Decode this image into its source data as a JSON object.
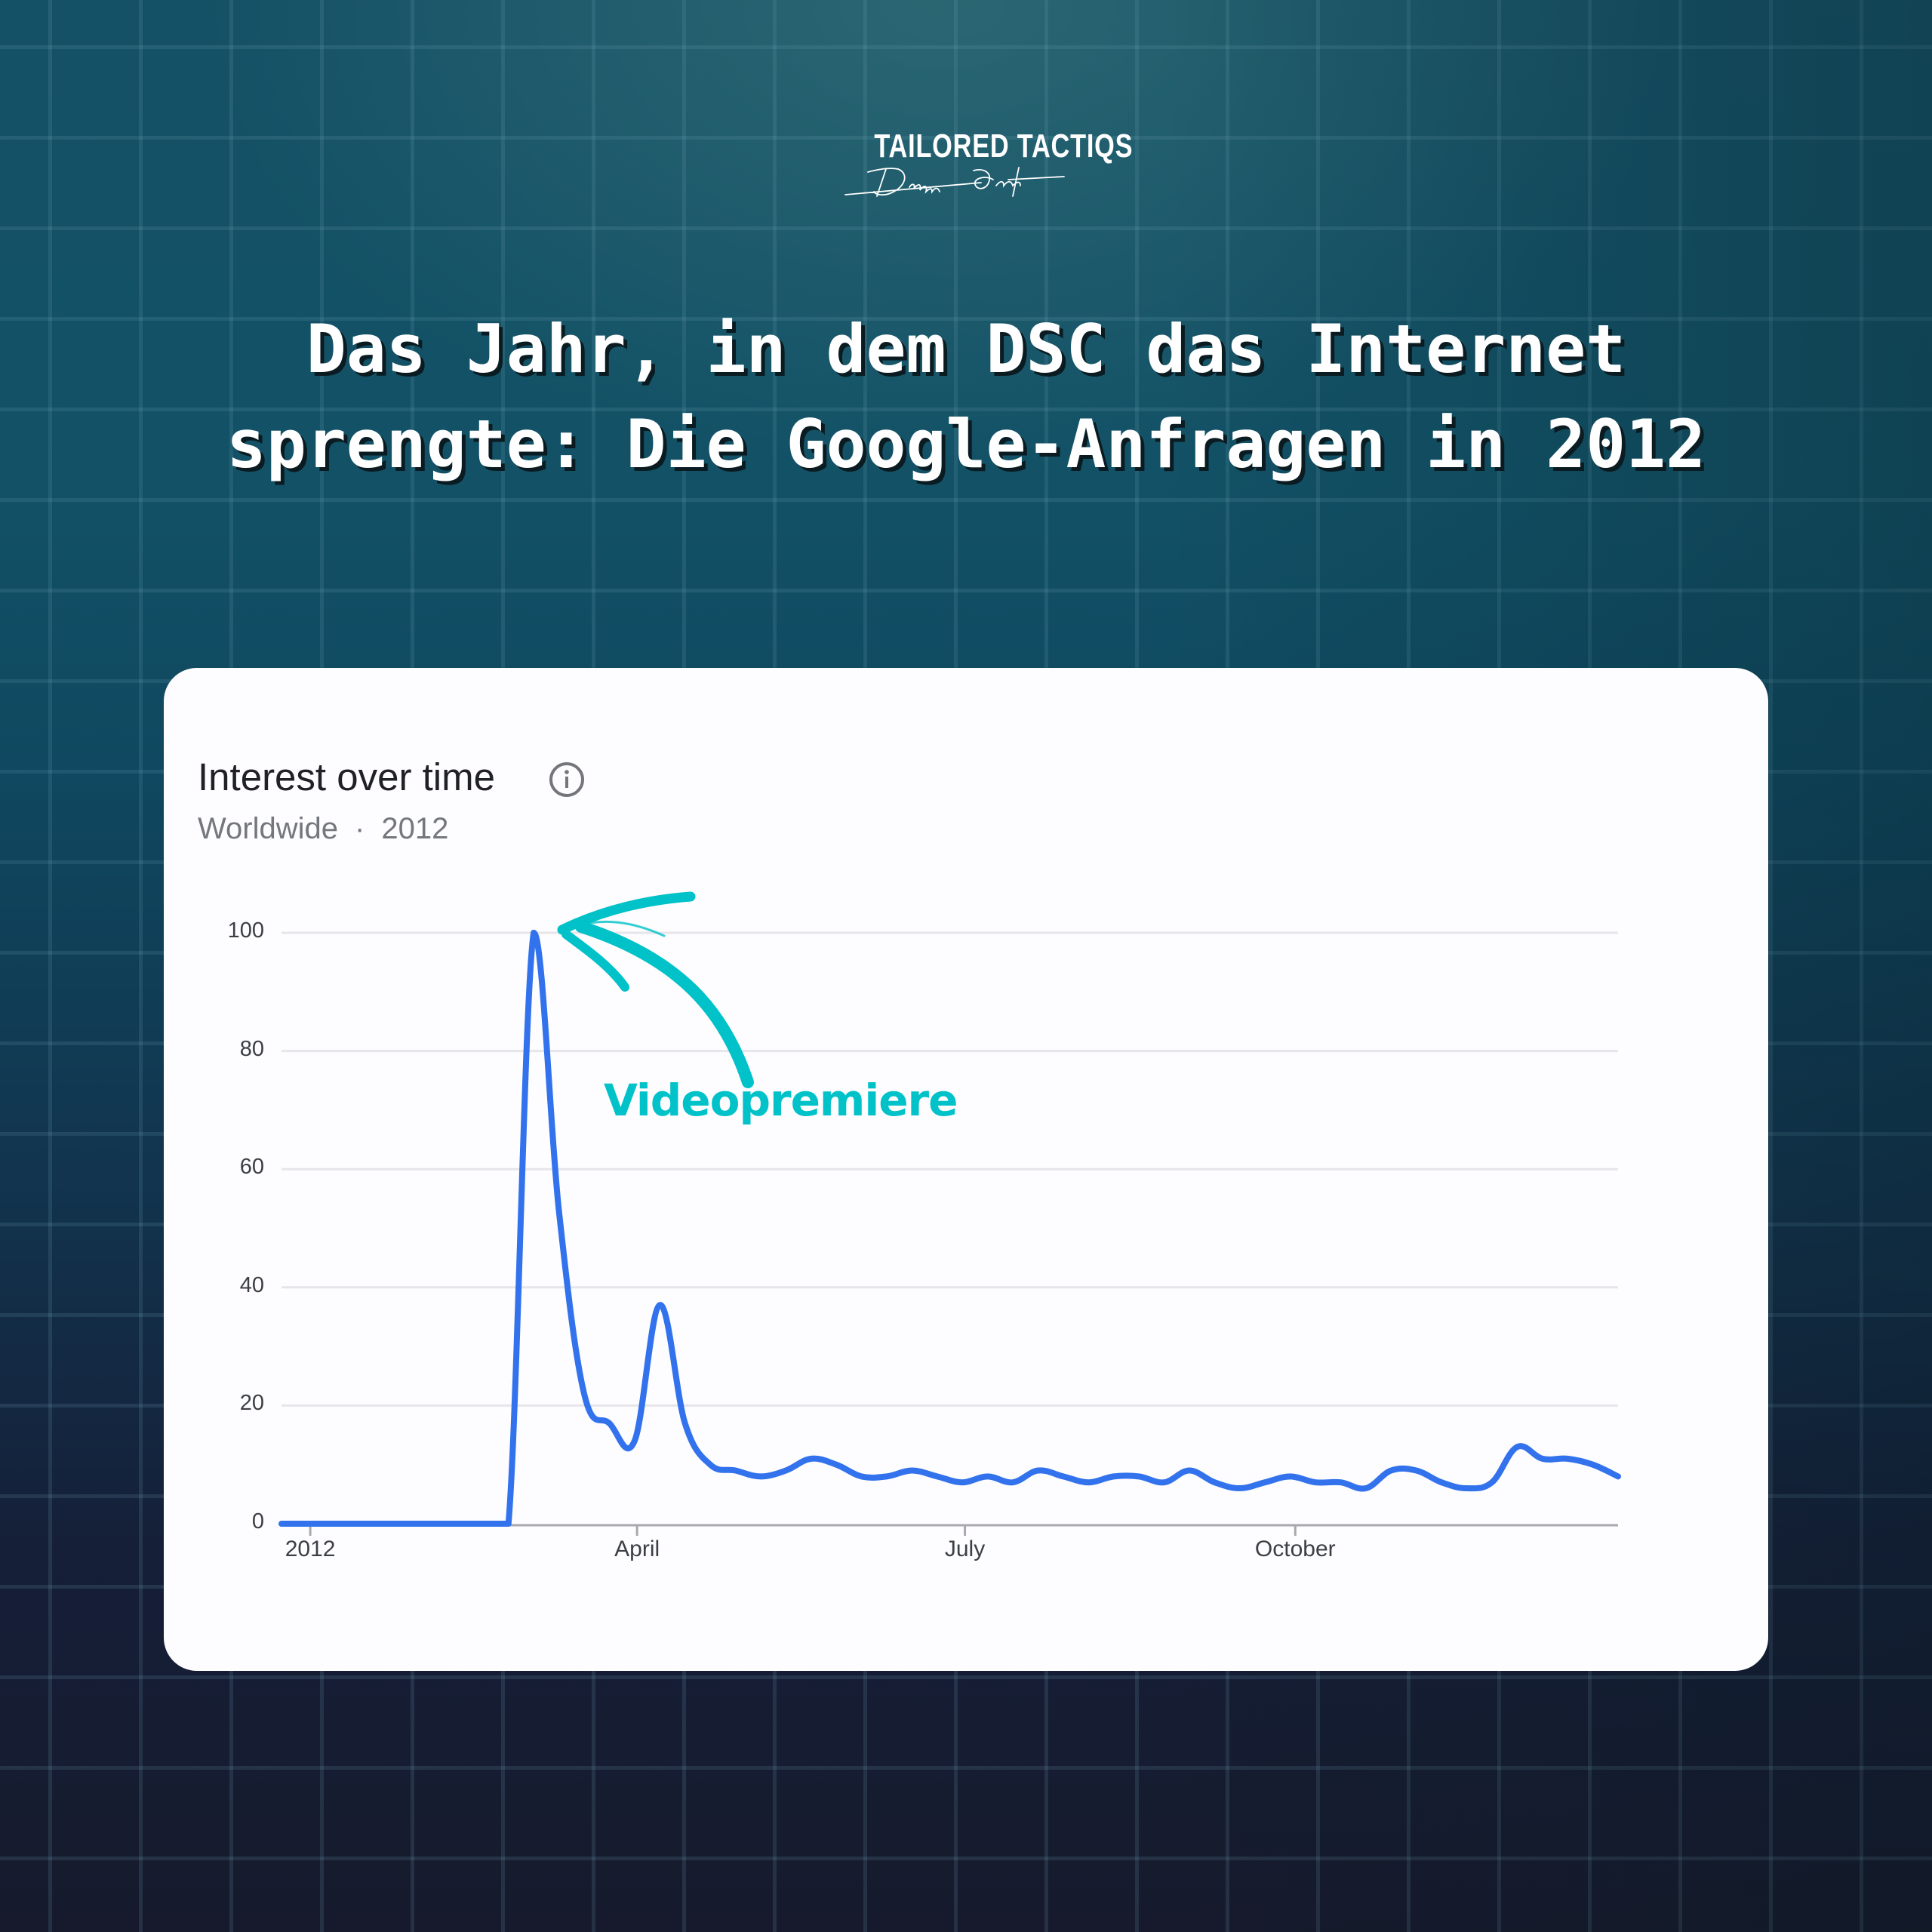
{
  "brand": {
    "wordmark": "TAILORED TACTIQS",
    "signature": "Dennis Quast"
  },
  "headline": {
    "line1": "Das Jahr, in dem DSC das Internet",
    "line2": "sprengte: Die Google-Anfragen in 2012"
  },
  "card": {
    "title": "Interest over time",
    "info_icon": "info-circle-icon",
    "region": "Worldwide",
    "separator": "·",
    "period": "2012"
  },
  "annotation": {
    "label": "Videopremiere",
    "icon": "hand-drawn-arrow-icon",
    "color": "#00c2c8"
  },
  "colors": {
    "line": "#3272ec",
    "annotation": "#00c2c8",
    "gridline": "#e7e5ea",
    "axis": "#a9a9ad"
  },
  "chart_data": {
    "type": "line",
    "title": "Interest over time",
    "subtitle": "Worldwide · 2012",
    "xlabel": "",
    "ylabel": "",
    "ylim": [
      0,
      100
    ],
    "yticks": [
      0,
      20,
      40,
      60,
      80,
      100
    ],
    "xticks": [
      {
        "label": "2012",
        "week": 1.14
      },
      {
        "label": "April",
        "week": 14.1
      },
      {
        "label": "July",
        "week": 27.1
      },
      {
        "label": "October",
        "week": 40.2
      }
    ],
    "grid": true,
    "legend": null,
    "annotations": [
      {
        "text": "Videopremiere",
        "points_to_week": 10,
        "value": 100
      }
    ],
    "series": [
      {
        "name": "Interest",
        "x_weeks": [
          0,
          1,
          2,
          3,
          4,
          5,
          6,
          7,
          8,
          9,
          10,
          11,
          12,
          13,
          14,
          15,
          16,
          17,
          18,
          19,
          20,
          21,
          22,
          23,
          24,
          25,
          26,
          27,
          28,
          29,
          30,
          31,
          32,
          33,
          34,
          35,
          36,
          37,
          38,
          39,
          40,
          41,
          42,
          43,
          44,
          45,
          46,
          47,
          48,
          49,
          50,
          51,
          52,
          53
        ],
        "values": [
          0,
          0,
          0,
          0,
          0,
          0,
          0,
          0,
          0,
          0,
          100,
          53,
          22,
          17,
          14,
          37,
          17,
          10,
          9,
          8,
          9,
          11,
          10,
          8,
          8,
          9,
          8,
          7,
          8,
          7,
          9,
          8,
          7,
          8,
          8,
          7,
          9,
          7,
          6,
          7,
          8,
          7,
          7,
          6,
          9,
          9,
          7,
          6,
          7,
          13,
          11,
          11,
          10,
          8
        ]
      }
    ]
  }
}
